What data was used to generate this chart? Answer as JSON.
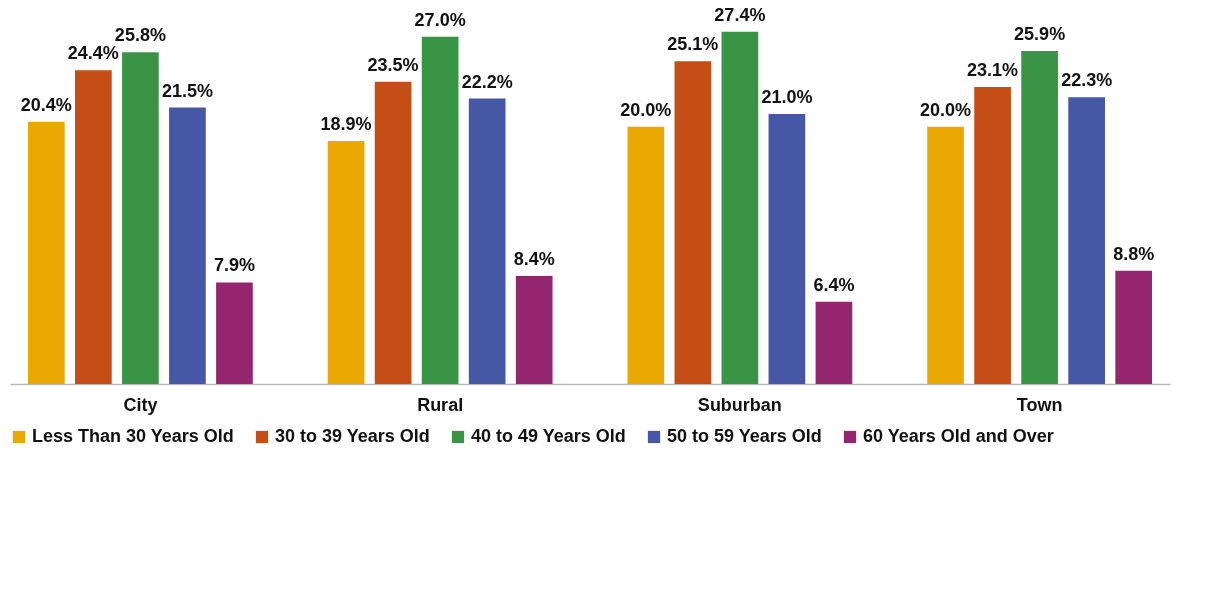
{
  "chart_data": {
    "type": "bar",
    "categories": [
      "City",
      "Rural",
      "Suburban",
      "Town"
    ],
    "series": [
      {
        "name": "Less Than 30 Years Old",
        "color": "#eaa800",
        "values": [
          20.4,
          18.9,
          20.0,
          20.0
        ],
        "value_labels": [
          "20.4%",
          "18.9%",
          "20.0%",
          "20.0%"
        ]
      },
      {
        "name": "30 to 39 Years Old",
        "color": "#c44e16",
        "values": [
          24.4,
          23.5,
          25.1,
          23.1
        ],
        "value_labels": [
          "24.4%",
          "23.5%",
          "25.1%",
          "23.1%"
        ]
      },
      {
        "name": "40 to 49 Years Old",
        "color": "#3a9445",
        "values": [
          25.8,
          27.0,
          27.4,
          25.9
        ],
        "value_labels": [
          "25.8%",
          "27.0%",
          "27.4%",
          "25.9%"
        ]
      },
      {
        "name": "50 to 59 Years Old",
        "color": "#4657a6",
        "values": [
          21.5,
          22.2,
          21.0,
          22.3
        ],
        "value_labels": [
          "21.5%",
          "22.2%",
          "21.0%",
          "22.3%"
        ]
      },
      {
        "name": "60 Years Old and Over",
        "color": "#93266e",
        "values": [
          7.9,
          8.4,
          6.4,
          8.8
        ],
        "value_labels": [
          "7.9%",
          "8.4%",
          "6.4%",
          "8.8%"
        ]
      }
    ],
    "legend": "bottom",
    "tick_labels": "x"
  }
}
